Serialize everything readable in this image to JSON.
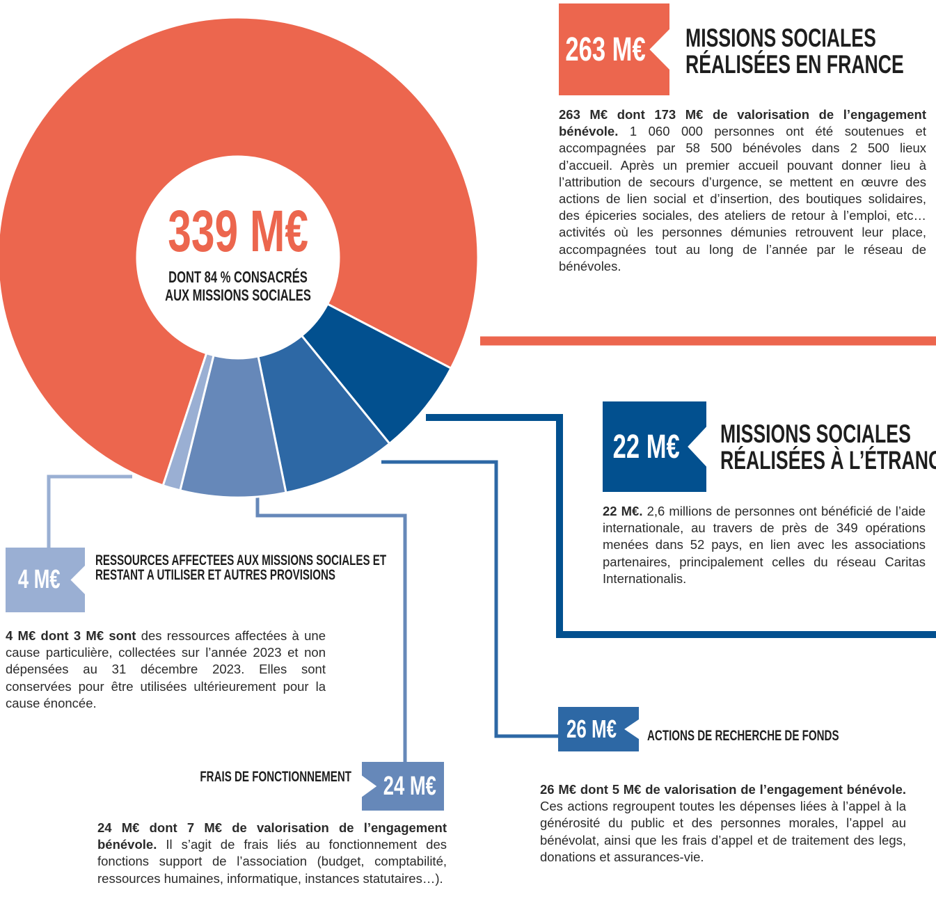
{
  "chart_data": {
    "type": "donut",
    "center_title": "339 M€",
    "center_subtitle": "DONT 84 % CONSACRÉS AUX MISSIONS SOCIALES",
    "categories": [
      "MISSIONS SOCIALES RÉALISÉES EN FRANCE",
      "MISSIONS SOCIALES RÉALISÉES À L’ÉTRANGER",
      "ACTIONS DE RECHERCHE DE FONDS",
      "FRAIS DE FONCTIONNEMENT",
      "RESSOURCES AFFECTEES AUX MISSIONS SOCIALES ET RESTANT A UTILISER ET AUTRES PROVISIONS"
    ],
    "values": [
      263,
      22,
      26,
      24,
      4
    ],
    "value_labels": [
      "263 M€",
      "22 M€",
      "26 M€",
      "24 M€",
      "4 M€"
    ],
    "colors": [
      "#ec664e",
      "#02508f",
      "#2d68a5",
      "#6688b9",
      "#9aafd3"
    ],
    "descriptions": [
      {
        "bold": "263 M€ dont 173 M€ de valorisation de l’engagement bénévole.",
        "text": " 1 060 000 personnes ont été soutenues et accompagnées par 58 500 bénévoles dans 2 500 lieux d’accueil. Après un premier accueil pouvant donner lieu à l’attribution de secours d’urgence, se mettent en œuvre des actions de lien social et d’insertion, des boutiques solidaires, des épiceries sociales, des ateliers de retour à l’emploi, etc… activités où les personnes démunies retrouvent leur place, accompagnées tout au long de l’année par le réseau de bénévoles."
      },
      {
        "bold": "22 M€.",
        "text": " 2,6 millions de personnes ont bénéficié de l’aide internationale, au travers de près de 349 opérations menées dans 52 pays, en lien avec les associations partenaires, principalement celles du réseau Caritas Internationalis."
      },
      {
        "bold": "26 M€ dont 5 M€ de valorisation de l’engagement bénévole.",
        "text": " Ces actions regroupent toutes les dépenses liées à l’appel à la générosité du public et des personnes morales, l’appel au bénévolat, ainsi que les frais d’appel et de traitement des legs, donations et assurances-vie."
      },
      {
        "bold": "24 M€ dont 7 M€ de valorisation de l’engagement bénévole.",
        "text": " Il s’agit de frais liés au fonctionnement des fonctions support de l’association (budget, comptabilité, ressources humaines, informatique, instances statutaires…)."
      },
      {
        "bold": "4 M€ dont 3 M€ sont",
        "text": " des ressources affectées à une cause particulière, collectées sur l’année 2023 et non dépensées au 31 décembre 2023. Elles sont conservées pour être utilisées ultérieurement pour la cause énoncée."
      }
    ]
  }
}
